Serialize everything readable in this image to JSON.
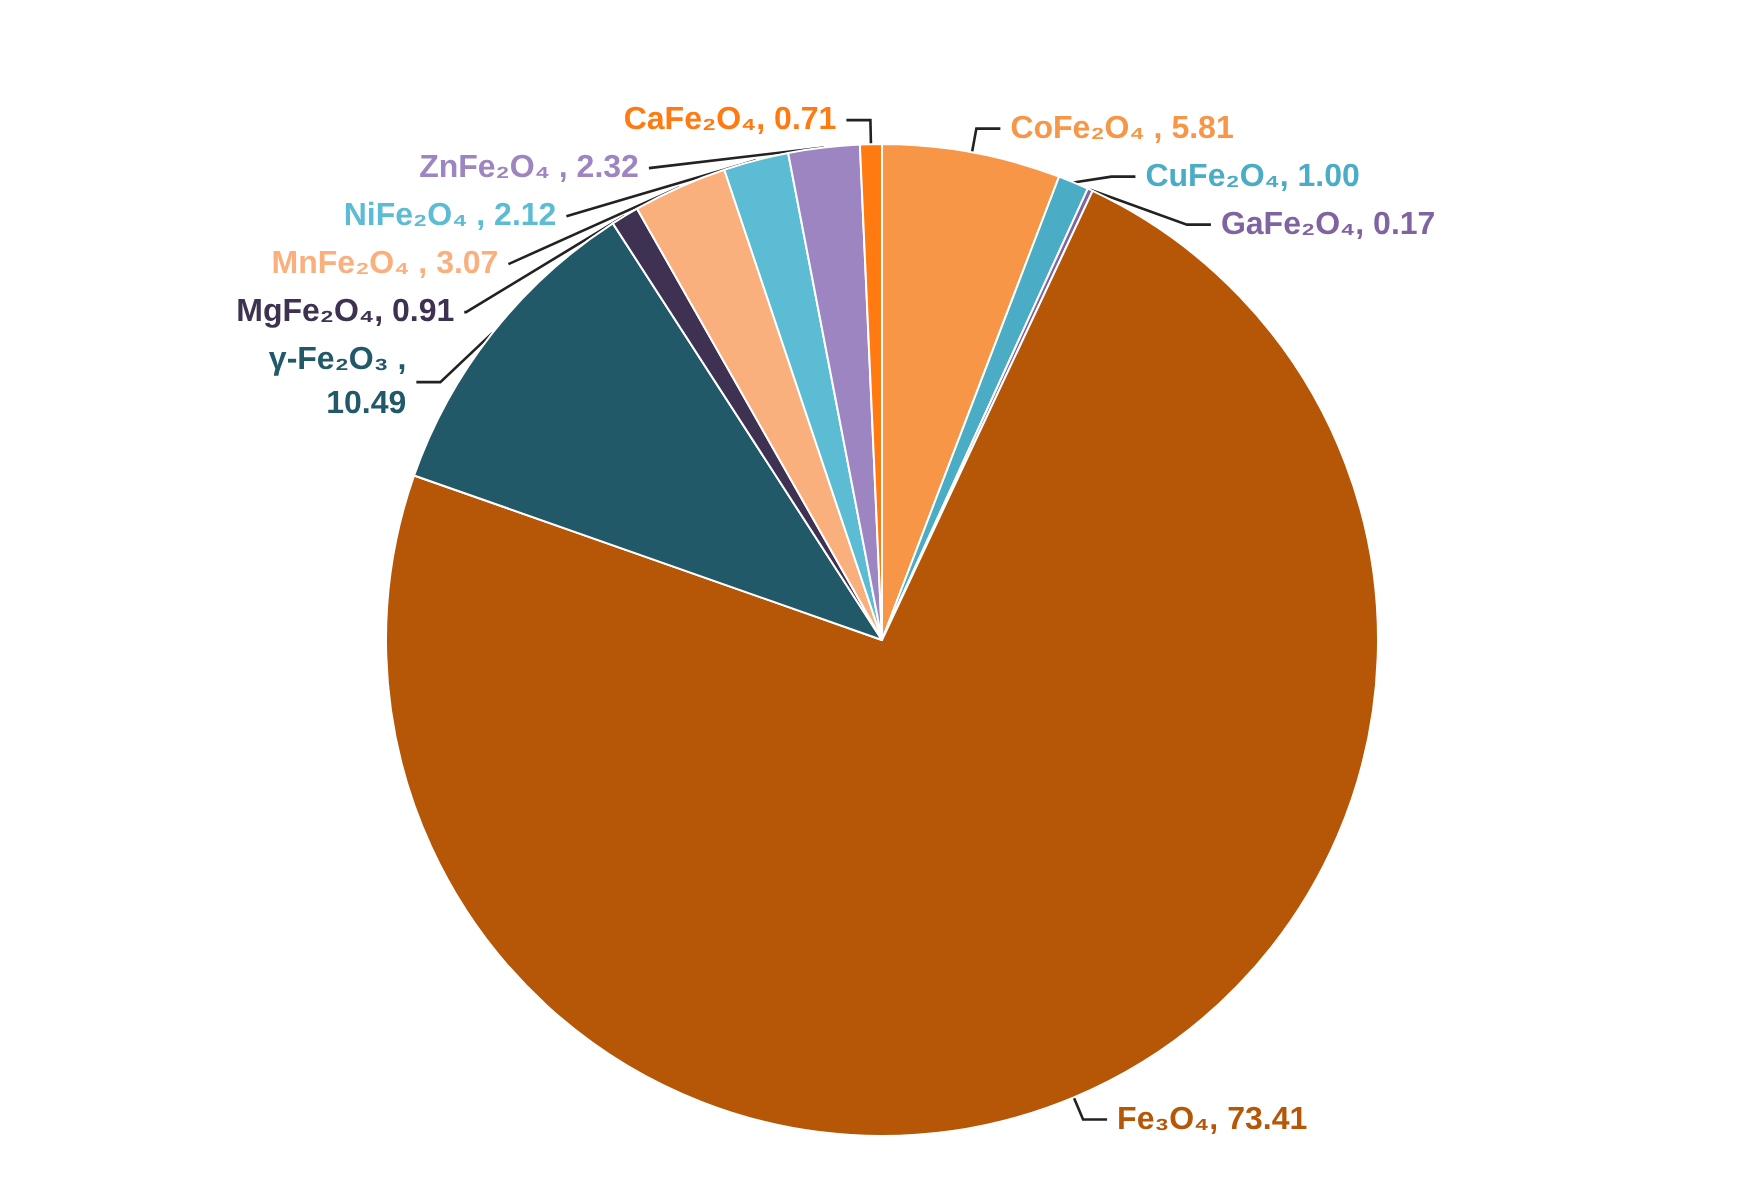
{
  "chart_data": {
    "type": "pie",
    "categories": [
      "CoFe₂O₄",
      "CuFe₂O₄",
      "GaFe₂O₄",
      "Fe₃O₄",
      "γ-Fe₂O₃",
      "MgFe₂O₄",
      "MnFe₂O₄",
      "NiFe₂O₄",
      "ZnFe₂O₄",
      "CaFe₂O₄"
    ],
    "values": [
      5.81,
      1.0,
      0.17,
      73.41,
      10.49,
      0.91,
      3.07,
      2.12,
      2.32,
      0.71
    ],
    "value_labels": [
      " , 5.81",
      ", 1.00",
      ", 0.17",
      ", 73.41",
      " ,\n10.49",
      ", 0.91",
      " , 3.07",
      " , 2.12",
      " , 2.32",
      ", 0.71"
    ],
    "colors": [
      "#f79646",
      "#4bacc6",
      "#8064a2",
      "#b65708",
      "#215968",
      "#3f3151",
      "#fab07c",
      "#5cbcd4",
      "#9c85c0",
      "#ff7a10"
    ],
    "legend": false
  }
}
